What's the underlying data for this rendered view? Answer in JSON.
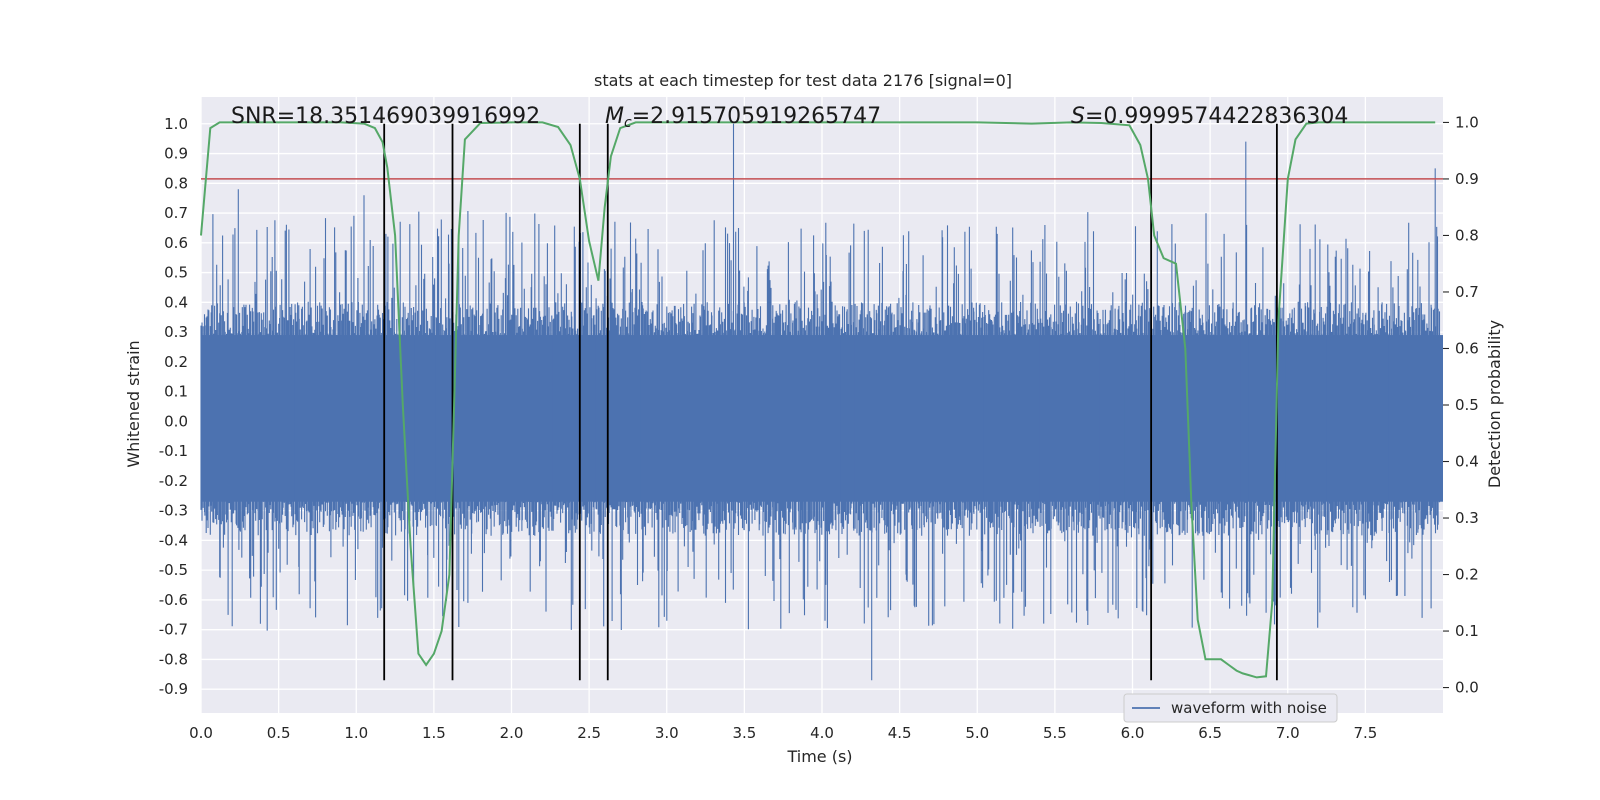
{
  "chart_data": {
    "type": "line",
    "title": "stats at each timestep for test data 2176 [signal=0]",
    "xlabel": "Time (s)",
    "ylabel": "Whitened strain",
    "y2label": "Detection probability",
    "xlim": [
      0.0,
      8.0
    ],
    "ylim": [
      -0.98,
      1.09
    ],
    "y2lim": [
      -0.045,
      1.045
    ],
    "xticks": [
      "0.0",
      "0.5",
      "1.0",
      "1.5",
      "2.0",
      "2.5",
      "3.0",
      "3.5",
      "4.0",
      "4.5",
      "5.0",
      "5.5",
      "6.0",
      "6.5",
      "7.0",
      "7.5"
    ],
    "yticks": [
      "1.0",
      "0.9",
      "0.8",
      "0.7",
      "0.6",
      "0.5",
      "0.4",
      "0.3",
      "0.2",
      "0.1",
      "0.0",
      "-0.1",
      "-0.2",
      "-0.3",
      "-0.4",
      "-0.5",
      "-0.6",
      "-0.7",
      "-0.8",
      "-0.9"
    ],
    "y2ticks": [
      "1.0",
      "0.9",
      "0.8",
      "0.7",
      "0.6",
      "0.5",
      "0.4",
      "0.3",
      "0.2",
      "0.1",
      "0.0"
    ],
    "grid": true,
    "legend_position": "lower-right",
    "annotations": {
      "snr": "SNR=18.351469039916992",
      "mc_symbol": "M",
      "mc_sub": "c",
      "mc_value": "=2.915705919265747",
      "s_symbol": "S",
      "s_value": "=0.9999574422836304"
    },
    "series": [
      {
        "name": "waveform with noise",
        "color": "#4c72b0",
        "axis": "left",
        "style": "dense-noise",
        "body_range": [
          -0.27,
          0.29
        ],
        "max": 1.0,
        "min": -0.87
      },
      {
        "color": "#55a868",
        "axis": "right",
        "x": [
          0.0,
          0.06,
          0.12,
          0.3,
          0.6,
          0.9,
          1.05,
          1.12,
          1.17,
          1.2,
          1.25,
          1.3,
          1.35,
          1.4,
          1.45,
          1.5,
          1.55,
          1.6,
          1.63,
          1.66,
          1.7,
          1.8,
          2.0,
          2.2,
          2.3,
          2.38,
          2.44,
          2.5,
          2.56,
          2.6,
          2.64,
          2.7,
          2.8,
          3.2,
          3.5,
          4.0,
          4.5,
          5.0,
          5.35,
          5.6,
          5.8,
          5.98,
          6.05,
          6.1,
          6.14,
          6.2,
          6.28,
          6.34,
          6.38,
          6.42,
          6.47,
          6.52,
          6.57,
          6.62,
          6.67,
          6.71,
          6.75,
          6.8,
          6.86,
          6.9,
          6.94,
          7.0,
          7.05,
          7.12,
          7.2,
          7.4,
          7.5,
          7.95
        ],
        "y": [
          0.8,
          0.99,
          1.0,
          1.0,
          1.0,
          1.0,
          0.998,
          0.99,
          0.965,
          0.92,
          0.8,
          0.5,
          0.25,
          0.06,
          0.04,
          0.06,
          0.1,
          0.2,
          0.5,
          0.8,
          0.97,
          0.999,
          1.0,
          1.0,
          0.992,
          0.96,
          0.9,
          0.79,
          0.72,
          0.85,
          0.94,
          0.99,
          1.0,
          1.0,
          1.0,
          1.0,
          1.0,
          1.0,
          0.998,
          1.0,
          0.999,
          0.995,
          0.96,
          0.9,
          0.8,
          0.76,
          0.75,
          0.6,
          0.32,
          0.12,
          0.05,
          0.05,
          0.05,
          0.04,
          0.03,
          0.025,
          0.022,
          0.018,
          0.02,
          0.15,
          0.65,
          0.9,
          0.97,
          0.998,
          1.0,
          1.0,
          1.0,
          1.0
        ]
      },
      {
        "color": "#c44e52",
        "axis": "left",
        "type": "hline",
        "y": 0.815
      }
    ],
    "vlines": [
      1.18,
      1.62,
      2.44,
      2.62,
      6.12,
      6.93
    ],
    "vline_range": [
      -0.87,
      1.0
    ]
  }
}
